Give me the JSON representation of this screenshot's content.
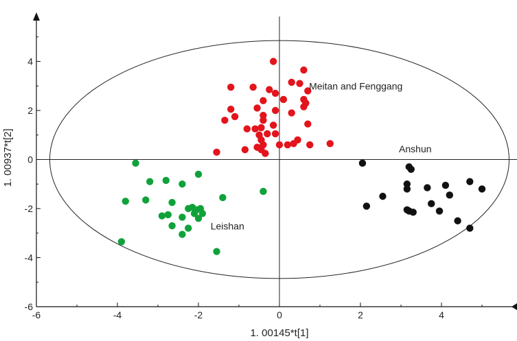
{
  "chart_data": {
    "type": "scatter",
    "xlabel": "1. 00145*t[1]",
    "ylabel": "1. 00937*t[2]",
    "xlim": [
      -6,
      6
    ],
    "ylim": [
      -6,
      6
    ],
    "xticks": [
      -6,
      -4,
      -2,
      0,
      2,
      4
    ],
    "yticks": [
      -6,
      -4,
      -2,
      0,
      2,
      4
    ],
    "x_tick_labels": [
      "-6",
      "-4",
      "-2",
      "0",
      "2",
      "4"
    ],
    "y_tick_labels": [
      "-6",
      "-4",
      "-2",
      "0",
      "2",
      "4"
    ],
    "ellipse": {
      "center": [
        0,
        0
      ],
      "rx": 5.67,
      "ry": 4.85
    },
    "grid": false,
    "series": [
      {
        "name": "Meitan and Fenggang",
        "color": "#e3141c",
        "label_at": [
          0.73,
          2.85
        ],
        "points": [
          [
            -0.15,
            4.0
          ],
          [
            0.6,
            3.65
          ],
          [
            0.3,
            3.15
          ],
          [
            0.5,
            3.1
          ],
          [
            -1.2,
            2.95
          ],
          [
            -0.65,
            2.95
          ],
          [
            -0.25,
            2.85
          ],
          [
            0.7,
            2.8
          ],
          [
            -0.1,
            2.7
          ],
          [
            -0.4,
            2.4
          ],
          [
            0.1,
            2.45
          ],
          [
            0.6,
            2.45
          ],
          [
            -0.55,
            2.1
          ],
          [
            -1.2,
            2.05
          ],
          [
            0.6,
            2.15
          ],
          [
            0.65,
            2.3
          ],
          [
            -0.1,
            2.0
          ],
          [
            -1.1,
            1.75
          ],
          [
            -0.4,
            1.8
          ],
          [
            0.3,
            1.9
          ],
          [
            -1.35,
            1.6
          ],
          [
            -0.4,
            1.6
          ],
          [
            -0.15,
            1.4
          ],
          [
            0.7,
            1.45
          ],
          [
            -0.8,
            1.25
          ],
          [
            -0.6,
            1.25
          ],
          [
            -0.45,
            1.3
          ],
          [
            -0.5,
            1.0
          ],
          [
            -0.3,
            1.05
          ],
          [
            -0.1,
            1.05
          ],
          [
            -0.45,
            0.8
          ],
          [
            0.45,
            0.8
          ],
          [
            -0.4,
            0.6
          ],
          [
            -0.55,
            0.5
          ],
          [
            -0.45,
            0.4
          ],
          [
            0.0,
            0.6
          ],
          [
            0.35,
            0.65
          ],
          [
            -0.35,
            0.25
          ],
          [
            -0.85,
            0.4
          ],
          [
            -1.55,
            0.3
          ],
          [
            0.2,
            0.6
          ],
          [
            0.75,
            0.6
          ],
          [
            1.25,
            0.65
          ]
        ]
      },
      {
        "name": "Leishan",
        "color": "#10a23a",
        "label_at": [
          -1.7,
          -2.85
        ],
        "points": [
          [
            -3.55,
            -0.15
          ],
          [
            -3.2,
            -0.9
          ],
          [
            -2.8,
            -0.85
          ],
          [
            -2.4,
            -1.0
          ],
          [
            -2.0,
            -0.6
          ],
          [
            -3.8,
            -1.7
          ],
          [
            -3.3,
            -1.65
          ],
          [
            -2.65,
            -1.75
          ],
          [
            -1.4,
            -1.55
          ],
          [
            -0.4,
            -1.3
          ],
          [
            -2.25,
            -2.0
          ],
          [
            -2.15,
            -1.95
          ],
          [
            -2.05,
            -2.05
          ],
          [
            -1.95,
            -2.0
          ],
          [
            -2.1,
            -2.2
          ],
          [
            -2.9,
            -2.3
          ],
          [
            -2.75,
            -2.25
          ],
          [
            -2.4,
            -2.35
          ],
          [
            -1.9,
            -2.2
          ],
          [
            -2.0,
            -2.4
          ],
          [
            -2.65,
            -2.7
          ],
          [
            -2.4,
            -3.05
          ],
          [
            -3.9,
            -3.35
          ],
          [
            -1.55,
            -3.75
          ],
          [
            -2.25,
            -2.8
          ]
        ]
      },
      {
        "name": "Anshun",
        "color": "#111111",
        "label_at": [
          2.95,
          0.3
        ],
        "points": [
          [
            2.05,
            -0.15
          ],
          [
            3.2,
            -0.3
          ],
          [
            3.25,
            -0.4
          ],
          [
            3.15,
            -1.0
          ],
          [
            3.15,
            -1.2
          ],
          [
            3.65,
            -1.15
          ],
          [
            4.1,
            -1.05
          ],
          [
            4.7,
            -0.9
          ],
          [
            5.0,
            -1.2
          ],
          [
            2.55,
            -1.5
          ],
          [
            4.2,
            -1.45
          ],
          [
            2.15,
            -1.9
          ],
          [
            3.75,
            -1.8
          ],
          [
            3.15,
            -2.05
          ],
          [
            3.3,
            -2.15
          ],
          [
            3.95,
            -2.1
          ],
          [
            4.4,
            -2.5
          ],
          [
            4.7,
            -2.8
          ],
          [
            3.2,
            -2.1
          ]
        ]
      }
    ]
  }
}
